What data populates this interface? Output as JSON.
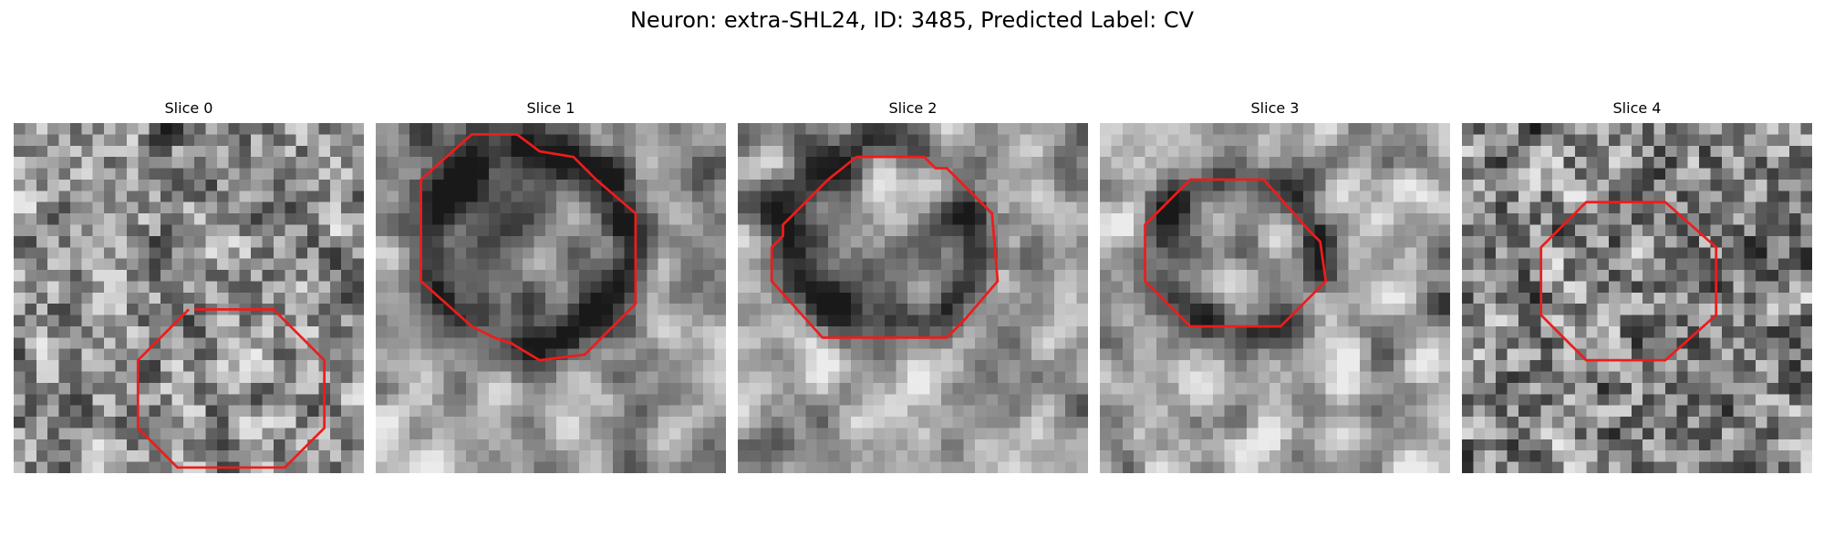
{
  "figure": {
    "title": "Neuron: extra-SHL24, ID: 3485, Predicted Label: CV",
    "contour_color": "#ee1c1c",
    "colormap": "gray",
    "grid_size": 31
  },
  "slices": [
    {
      "title": "Slice 0",
      "seed": 101,
      "texture": "noise",
      "contour": [
        [
          16,
          16.5
        ],
        [
          23,
          16.5
        ],
        [
          27.5,
          21
        ],
        [
          27.5,
          27
        ],
        [
          24,
          30.5
        ],
        [
          14.5,
          30.5
        ],
        [
          11,
          27
        ],
        [
          11,
          21
        ],
        [
          15.5,
          16.5
        ]
      ],
      "contour_closed": false
    },
    {
      "title": "Slice 1",
      "seed": 202,
      "texture": "cell",
      "contour": [
        [
          8.5,
          1
        ],
        [
          12.5,
          1
        ],
        [
          14.5,
          2.5
        ],
        [
          17.5,
          3
        ],
        [
          19.5,
          5
        ],
        [
          23,
          8
        ],
        [
          23,
          16
        ],
        [
          18.5,
          20.5
        ],
        [
          14.5,
          21
        ],
        [
          12,
          19.5
        ],
        [
          10.5,
          19
        ],
        [
          8.5,
          18
        ],
        [
          4,
          14
        ],
        [
          4,
          5
        ]
      ],
      "contour_closed": true
    },
    {
      "title": "Slice 2",
      "seed": 303,
      "texture": "cell",
      "contour": [
        [
          10.5,
          3
        ],
        [
          16.5,
          3
        ],
        [
          17.5,
          4
        ],
        [
          18.5,
          4
        ],
        [
          22.5,
          8
        ],
        [
          23,
          14
        ],
        [
          20,
          17.5
        ],
        [
          18.5,
          19
        ],
        [
          7.5,
          19
        ],
        [
          3,
          14
        ],
        [
          3,
          11
        ],
        [
          4,
          10
        ],
        [
          4,
          9
        ],
        [
          8,
          5
        ]
      ],
      "contour_closed": true
    },
    {
      "title": "Slice 3",
      "seed": 404,
      "texture": "cell",
      "contour": [
        [
          8,
          5
        ],
        [
          14.5,
          5
        ],
        [
          18.5,
          9.5
        ],
        [
          19.5,
          10.5
        ],
        [
          20,
          14
        ],
        [
          16,
          18
        ],
        [
          8,
          18
        ],
        [
          4,
          14
        ],
        [
          4,
          9
        ]
      ],
      "contour_closed": true
    },
    {
      "title": "Slice 4",
      "seed": 505,
      "texture": "noise",
      "contour": [
        [
          11,
          7
        ],
        [
          18,
          7
        ],
        [
          22.5,
          11
        ],
        [
          22.5,
          17
        ],
        [
          18,
          21
        ],
        [
          11,
          21
        ],
        [
          7,
          17
        ],
        [
          7,
          11
        ]
      ],
      "contour_closed": true
    }
  ]
}
